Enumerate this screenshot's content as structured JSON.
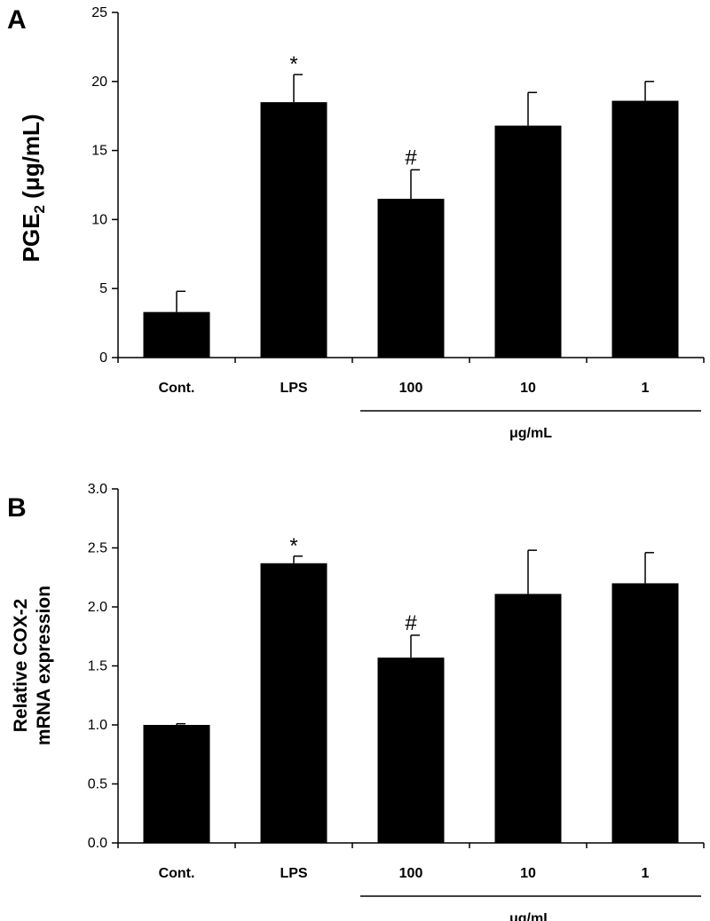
{
  "chart_data": [
    {
      "panel": "A",
      "type": "bar",
      "categories": [
        "Cont.",
        "LPS",
        "100",
        "10",
        "1"
      ],
      "values": [
        3.3,
        18.5,
        11.5,
        16.8,
        18.6
      ],
      "errors": [
        1.5,
        2.0,
        2.1,
        2.4,
        1.4
      ],
      "significance": [
        "",
        "*",
        "#",
        "",
        ""
      ],
      "ylabel": {
        "main": "PGE",
        "sub": "2",
        "unit": " (μg/mL)"
      },
      "ylim": [
        0,
        25
      ],
      "yticks": [
        0,
        5,
        10,
        15,
        20,
        25
      ],
      "ytick_labels": [
        "0",
        "5",
        "10",
        "15",
        "20",
        "25"
      ],
      "group_label": "μg/mL",
      "bar_color": "#000000"
    },
    {
      "panel": "B",
      "type": "bar",
      "categories": [
        "Cont.",
        "LPS",
        "100",
        "10",
        "1"
      ],
      "values": [
        1.0,
        2.37,
        1.57,
        2.11,
        2.2
      ],
      "errors": [
        0.01,
        0.06,
        0.19,
        0.37,
        0.26
      ],
      "significance": [
        "",
        "*",
        "#",
        "",
        ""
      ],
      "ylabel_lines": [
        "Relative COX-2",
        "mRNA expression"
      ],
      "ylim": [
        0,
        3.0
      ],
      "yticks": [
        0,
        0.5,
        1.0,
        1.5,
        2.0,
        2.5,
        3.0
      ],
      "ytick_labels": [
        "0.0",
        "0.5",
        "1.0",
        "1.5",
        "2.0",
        "2.5",
        "3.0"
      ],
      "group_label": "μg/mL",
      "bar_color": "#000000"
    }
  ]
}
